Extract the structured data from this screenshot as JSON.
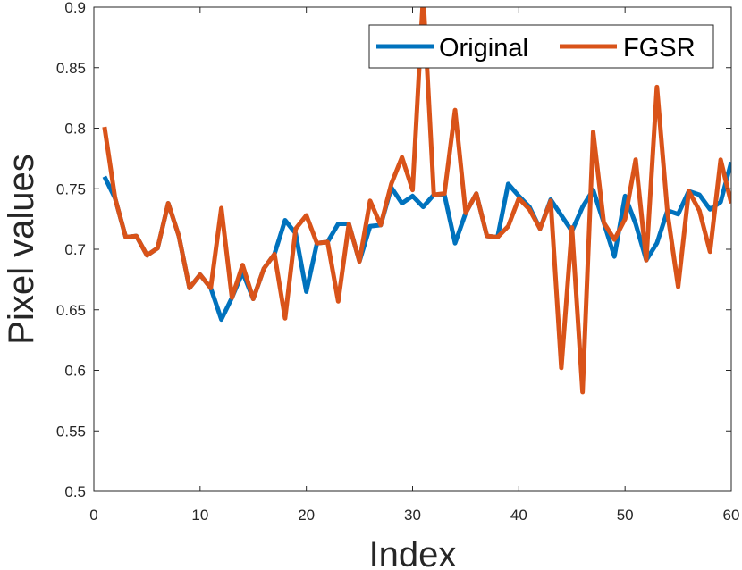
{
  "chart_data": {
    "type": "line",
    "title": "",
    "xlabel": "Index",
    "ylabel": "Pixel values",
    "xlim": [
      0,
      60
    ],
    "ylim": [
      0.5,
      0.9
    ],
    "xticks": [
      "0",
      "10",
      "20",
      "30",
      "40",
      "50",
      "60"
    ],
    "yticks": [
      "0.5",
      "0.55",
      "0.6",
      "0.65",
      "0.7",
      "0.75",
      "0.8",
      "0.85",
      "0.9"
    ],
    "grid": false,
    "legend_position": "top-right",
    "x": [
      1,
      2,
      3,
      4,
      5,
      6,
      7,
      8,
      9,
      10,
      11,
      12,
      13,
      14,
      15,
      16,
      17,
      18,
      19,
      20,
      21,
      22,
      23,
      24,
      25,
      26,
      27,
      28,
      29,
      30,
      31,
      32,
      33,
      34,
      35,
      36,
      37,
      38,
      39,
      40,
      41,
      42,
      43,
      44,
      45,
      46,
      47,
      48,
      49,
      50,
      51,
      52,
      53,
      54,
      55,
      56,
      57,
      58,
      59,
      60
    ],
    "series": [
      {
        "name": "Original",
        "color": "#0072BD",
        "values": [
          0.76,
          0.742,
          0.71,
          0.711,
          0.695,
          0.701,
          0.738,
          0.711,
          0.668,
          0.679,
          0.668,
          0.642,
          0.66,
          0.681,
          0.659,
          0.684,
          0.696,
          0.724,
          0.713,
          0.665,
          0.705,
          0.706,
          0.721,
          0.721,
          0.69,
          0.719,
          0.72,
          0.751,
          0.738,
          0.744,
          0.735,
          0.745,
          0.745,
          0.705,
          0.73,
          0.746,
          0.711,
          0.71,
          0.754,
          0.744,
          0.735,
          0.717,
          0.741,
          0.728,
          0.715,
          0.735,
          0.749,
          0.722,
          0.694,
          0.744,
          0.721,
          0.691,
          0.705,
          0.732,
          0.729,
          0.748,
          0.745,
          0.733,
          0.739,
          0.772
        ]
      },
      {
        "name": "FGSR",
        "color": "#D95319",
        "values": [
          0.801,
          0.742,
          0.71,
          0.711,
          0.695,
          0.701,
          0.738,
          0.711,
          0.668,
          0.679,
          0.668,
          0.734,
          0.66,
          0.687,
          0.659,
          0.684,
          0.696,
          0.643,
          0.717,
          0.728,
          0.705,
          0.706,
          0.657,
          0.721,
          0.69,
          0.74,
          0.72,
          0.754,
          0.776,
          0.749,
          0.91,
          0.745,
          0.746,
          0.815,
          0.73,
          0.746,
          0.711,
          0.71,
          0.719,
          0.742,
          0.733,
          0.717,
          0.74,
          0.602,
          0.718,
          0.582,
          0.797,
          0.722,
          0.708,
          0.725,
          0.774,
          0.691,
          0.834,
          0.73,
          0.669,
          0.748,
          0.732,
          0.698,
          0.774,
          0.738
        ]
      }
    ]
  }
}
